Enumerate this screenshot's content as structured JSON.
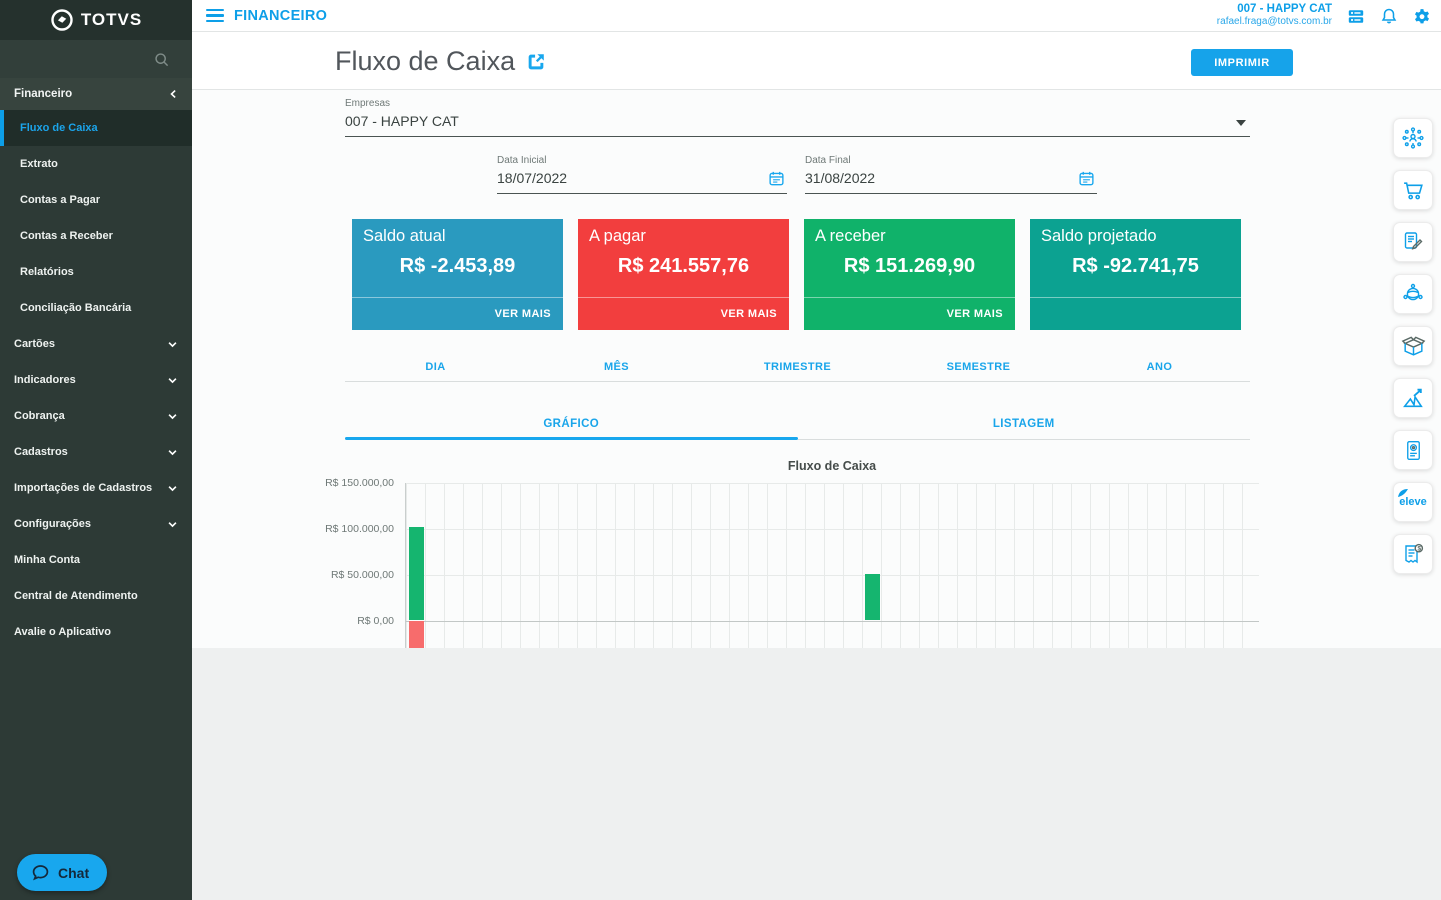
{
  "app": {
    "brand": "TOTVS",
    "module_title": "FINANCEIRO"
  },
  "topbar": {
    "company": "007 - HAPPY CAT",
    "email": "rafael.fraga@totvs.com.br",
    "icons": [
      "modules-icon",
      "notifications-icon",
      "settings-icon"
    ],
    "accent_color": "#0d9fe8"
  },
  "sidebar": {
    "section": {
      "label": "Financeiro"
    },
    "submenu": [
      {
        "label": "Fluxo de Caixa",
        "active": true
      },
      {
        "label": "Extrato",
        "active": false
      },
      {
        "label": "Contas a Pagar",
        "active": false
      },
      {
        "label": "Contas a Receber",
        "active": false
      },
      {
        "label": "Relatórios",
        "active": false
      },
      {
        "label": "Conciliação Bancária",
        "active": false
      }
    ],
    "groups": [
      {
        "label": "Cartões"
      },
      {
        "label": "Indicadores"
      },
      {
        "label": "Cobrança"
      },
      {
        "label": "Cadastros"
      },
      {
        "label": "Importações de Cadastros"
      },
      {
        "label": "Configurações"
      }
    ],
    "links": [
      {
        "label": "Minha Conta"
      },
      {
        "label": "Central de Atendimento"
      },
      {
        "label": "Avalie o Aplicativo"
      }
    ],
    "chat_label": "Chat",
    "bg_color": "#2d3a36"
  },
  "header": {
    "title": "Fluxo de Caixa",
    "print_button": "IMPRIMIR"
  },
  "filters": {
    "empresas": {
      "label": "Empresas",
      "value": "007 - HAPPY CAT"
    },
    "data_inicial": {
      "label": "Data Inicial",
      "value": "18/07/2022"
    },
    "data_final": {
      "label": "Data Final",
      "value": "31/08/2022"
    }
  },
  "cards": [
    {
      "title": "Saldo atual",
      "value": "R$ -2.453,89",
      "action": "VER MAIS",
      "color": "#2a9abf"
    },
    {
      "title": "A pagar",
      "value": "R$ 241.557,76",
      "action": "VER MAIS",
      "color": "#f23e3e"
    },
    {
      "title": "A receber",
      "value": "R$ 151.269,90",
      "action": "VER MAIS",
      "color": "#10b26a"
    },
    {
      "title": "Saldo projetado",
      "value": "R$ -92.741,75",
      "action": "",
      "color": "#0ca291"
    }
  ],
  "period_tabs": [
    {
      "label": "DIA"
    },
    {
      "label": "MÊS"
    },
    {
      "label": "TRIMESTRE"
    },
    {
      "label": "SEMESTRE"
    },
    {
      "label": "ANO"
    }
  ],
  "view_tabs": [
    {
      "label": "GRÁFICO",
      "active": true
    },
    {
      "label": "LISTAGEM",
      "active": false
    }
  ],
  "chart_data": {
    "type": "bar",
    "title": "Fluxo de Caixa",
    "y_ticks": [
      "R$ 150.000,00",
      "R$ 100.000,00",
      "R$ 50.000,00",
      "R$ 0,00"
    ],
    "y_tick_values": [
      150000,
      100000,
      50000,
      0
    ],
    "ylim_visible": [
      -30000,
      150000
    ],
    "x_slots": 45,
    "x_axis_note": "one column per day from 18/07/2022 to 31/08/2022; x labels clipped below visible area",
    "grid": true,
    "legend": false,
    "series": [
      {
        "name": "positive",
        "color": "#15b56f",
        "points": [
          {
            "slot": 0,
            "value": 101500
          },
          {
            "slot": 24,
            "value": 50500
          }
        ]
      },
      {
        "name": "negative",
        "color": "#f76c6c",
        "points": [
          {
            "slot": 0,
            "value": -40000,
            "clipped_bottom": true
          }
        ]
      }
    ]
  },
  "rail": {
    "icons": [
      "collaboration-network-icon",
      "shopping-cart-icon",
      "contract-signature-icon",
      "global-network-icon",
      "package-box-icon",
      "growth-chart-icon",
      "pos-terminal-icon",
      "eleve-logo",
      "invoice-billing-icon"
    ],
    "eleve_label": "eleve"
  }
}
